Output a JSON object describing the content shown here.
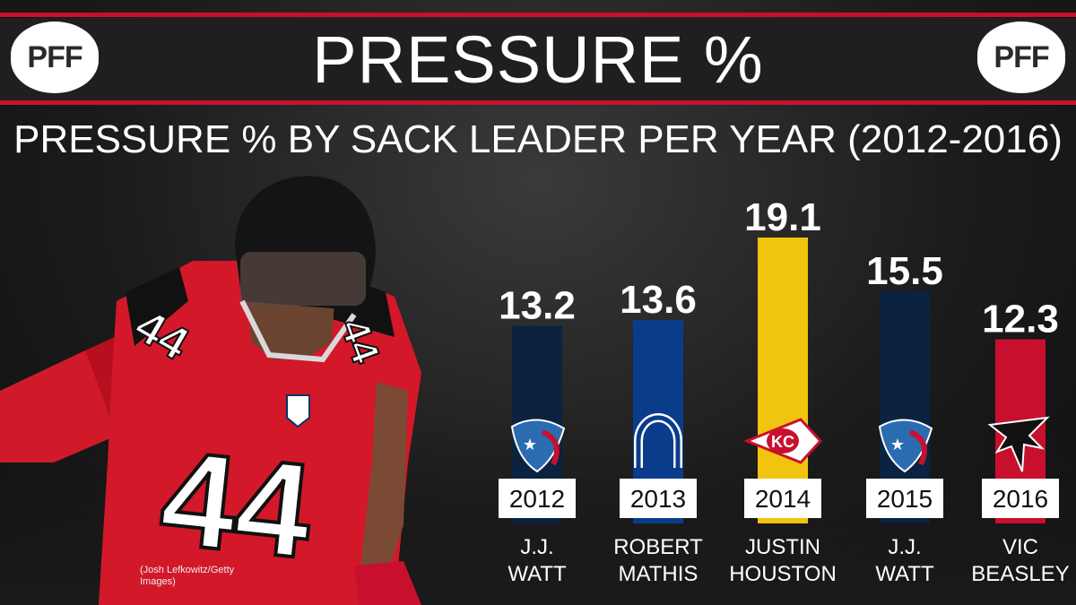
{
  "header": {
    "title": "PRESSURE %",
    "logo_text": "PFF"
  },
  "photo_credit": "(Josh Lefkowitz/Getty Images)",
  "player_jersey_number": "44",
  "chart_data": {
    "type": "bar",
    "title": "PRESSURE %",
    "subtitle": "PRESSURE % BY SACK LEADER PER YEAR (2012-2016)",
    "categories": [
      "2012",
      "2013",
      "2014",
      "2015",
      "2016"
    ],
    "values": [
      13.2,
      13.6,
      19.1,
      15.5,
      12.3
    ],
    "value_labels": [
      "13.2",
      "13.6",
      "19.1",
      "15.5",
      "12.3"
    ],
    "players": [
      [
        "J.J.",
        "WATT"
      ],
      [
        "ROBERT",
        "MATHIS"
      ],
      [
        "JUSTIN",
        "HOUSTON"
      ],
      [
        "J.J.",
        "WATT"
      ],
      [
        "VIC",
        "BEASLEY"
      ]
    ],
    "teams": [
      "texans-logo",
      "colts-logo",
      "chiefs-logo",
      "texans-logo",
      "falcons-logo"
    ],
    "bar_colors": [
      "#0b2240",
      "#0b3c8c",
      "#f1c40f",
      "#0b2240",
      "#c8102e"
    ],
    "ylim": [
      0,
      20
    ],
    "xlabel": "",
    "ylabel": ""
  },
  "colors": {
    "accent_red": "#c8102e",
    "label_box": "#ffffff",
    "text": "#ffffff"
  }
}
